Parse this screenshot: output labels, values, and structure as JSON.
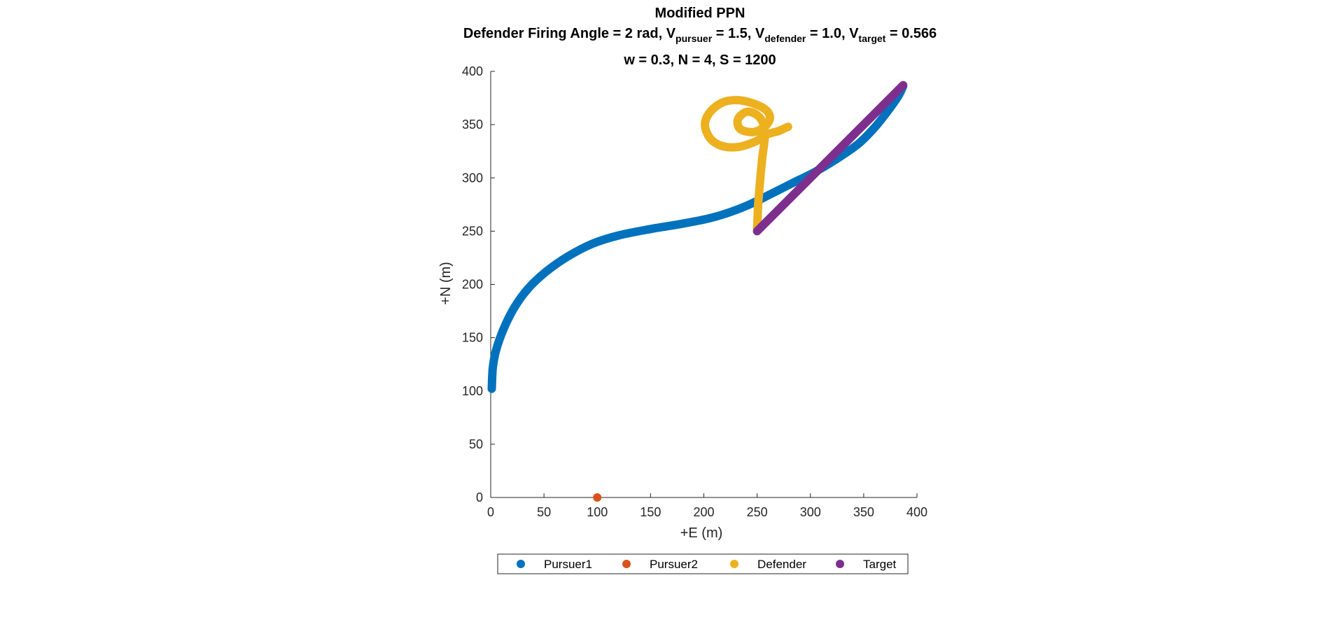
{
  "chart_data": {
    "type": "line",
    "title": "Modified PPN",
    "subtitle": {
      "prefix": "Defender Firing Angle = 2 rad, V",
      "pursuer_sub": "pursuer",
      "pursuer_val": " = 1.5, V",
      "defender_sub": "defender",
      "defender_val": " = 1.0, V",
      "target_sub": "target",
      "target_val": " = 0.566"
    },
    "params_line": "w = 0.3, N = 4, S = 1200",
    "xlabel": "+E (m)",
    "ylabel": "+N (m)",
    "xlim": [
      0,
      400
    ],
    "ylim": [
      0,
      400
    ],
    "xticks": [
      0,
      50,
      100,
      150,
      200,
      250,
      300,
      350,
      400
    ],
    "yticks": [
      0,
      50,
      100,
      150,
      200,
      250,
      300,
      350,
      400
    ],
    "legend_position": "bottom-outside",
    "series": [
      {
        "name": "Pursuer1",
        "color": "#0072BD",
        "points": [
          [
            1,
            102
          ],
          [
            2,
            122
          ],
          [
            5,
            138
          ],
          [
            12,
            158
          ],
          [
            22,
            178
          ],
          [
            35,
            196
          ],
          [
            52,
            212
          ],
          [
            72,
            226
          ],
          [
            95,
            238
          ],
          [
            120,
            246
          ],
          [
            150,
            252
          ],
          [
            180,
            257
          ],
          [
            205,
            262
          ],
          [
            225,
            268
          ],
          [
            245,
            276
          ],
          [
            265,
            286
          ],
          [
            285,
            296
          ],
          [
            305,
            306
          ],
          [
            325,
            318
          ],
          [
            345,
            332
          ],
          [
            360,
            347
          ],
          [
            372,
            362
          ],
          [
            382,
            376
          ],
          [
            387,
            386
          ]
        ]
      },
      {
        "name": "Pursuer2",
        "color": "#D95319",
        "points": [
          [
            100,
            0
          ]
        ]
      },
      {
        "name": "Defender",
        "color": "#EDB120",
        "points": [
          [
            250,
            252
          ],
          [
            251,
            275
          ],
          [
            253,
            300
          ],
          [
            255,
            320
          ],
          [
            257,
            337
          ],
          [
            256,
            350
          ],
          [
            250,
            359
          ],
          [
            240,
            362
          ],
          [
            232,
            355
          ],
          [
            234,
            346
          ],
          [
            246,
            343
          ],
          [
            257,
            348
          ],
          [
            262,
            356
          ],
          [
            258,
            364
          ],
          [
            246,
            370
          ],
          [
            232,
            373
          ],
          [
            218,
            371
          ],
          [
            206,
            362
          ],
          [
            201,
            350
          ],
          [
            206,
            337
          ],
          [
            217,
            330
          ],
          [
            232,
            329
          ],
          [
            248,
            334
          ],
          [
            260,
            341
          ],
          [
            270,
            344
          ],
          [
            279,
            348
          ]
        ]
      },
      {
        "name": "Target",
        "color": "#7E2F8E",
        "points": [
          [
            250,
            250
          ],
          [
            387,
            387
          ]
        ]
      }
    ]
  }
}
